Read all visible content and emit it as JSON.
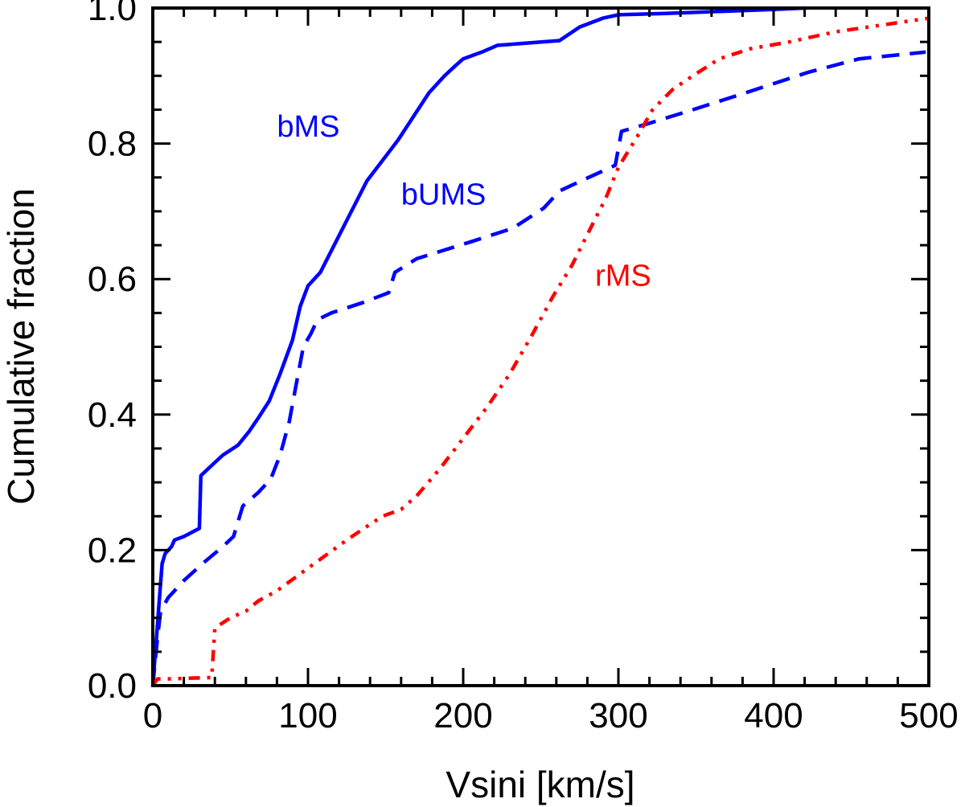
{
  "chart_data": {
    "type": "line",
    "xlabel": "Vsini [km/s]",
    "ylabel": "Cumulative fraction",
    "xlim": [
      0,
      500
    ],
    "ylim": [
      0,
      1.0
    ],
    "xticks": [
      "0",
      "100",
      "200",
      "300",
      "400",
      "500"
    ],
    "yticks": [
      "0.0",
      "0.2",
      "0.4",
      "0.6",
      "0.8",
      "1.0"
    ],
    "xtick_values": [
      0,
      100,
      200,
      300,
      400,
      500
    ],
    "ytick_values": [
      0,
      0.2,
      0.4,
      0.6,
      0.8,
      1.0
    ],
    "grid": false,
    "series": [
      {
        "name": "bMS",
        "color": "#0000ff",
        "style": "solid",
        "label_at": [
          80,
          0.81
        ],
        "points": [
          [
            0,
            0.0
          ],
          [
            2,
            0.06
          ],
          [
            4,
            0.12
          ],
          [
            6,
            0.18
          ],
          [
            8,
            0.195
          ],
          [
            12,
            0.205
          ],
          [
            14,
            0.215
          ],
          [
            20,
            0.22
          ],
          [
            30,
            0.232
          ],
          [
            31,
            0.31
          ],
          [
            38,
            0.325
          ],
          [
            45,
            0.34
          ],
          [
            55,
            0.355
          ],
          [
            62,
            0.375
          ],
          [
            68,
            0.395
          ],
          [
            75,
            0.42
          ],
          [
            82,
            0.46
          ],
          [
            90,
            0.51
          ],
          [
            95,
            0.56
          ],
          [
            100,
            0.59
          ],
          [
            108,
            0.61
          ],
          [
            118,
            0.655
          ],
          [
            128,
            0.7
          ],
          [
            138,
            0.745
          ],
          [
            148,
            0.775
          ],
          [
            158,
            0.805
          ],
          [
            168,
            0.84
          ],
          [
            178,
            0.875
          ],
          [
            188,
            0.9
          ],
          [
            195,
            0.915
          ],
          [
            200,
            0.925
          ],
          [
            212,
            0.935
          ],
          [
            222,
            0.945
          ],
          [
            240,
            0.948
          ],
          [
            262,
            0.952
          ],
          [
            275,
            0.972
          ],
          [
            290,
            0.985
          ],
          [
            300,
            0.99
          ],
          [
            330,
            0.992
          ],
          [
            365,
            0.995
          ],
          [
            400,
            0.998
          ],
          [
            420,
            1.0
          ]
        ]
      },
      {
        "name": "bUMS",
        "color": "#0000ff",
        "style": "dashed",
        "label_at": [
          160,
          0.71
        ],
        "points": [
          [
            0,
            0.0
          ],
          [
            3,
            0.07
          ],
          [
            5,
            0.11
          ],
          [
            10,
            0.13
          ],
          [
            20,
            0.155
          ],
          [
            32,
            0.18
          ],
          [
            45,
            0.205
          ],
          [
            52,
            0.22
          ],
          [
            58,
            0.265
          ],
          [
            68,
            0.285
          ],
          [
            76,
            0.305
          ],
          [
            82,
            0.34
          ],
          [
            88,
            0.39
          ],
          [
            92,
            0.44
          ],
          [
            97,
            0.5
          ],
          [
            102,
            0.52
          ],
          [
            106,
            0.54
          ],
          [
            115,
            0.55
          ],
          [
            135,
            0.565
          ],
          [
            152,
            0.58
          ],
          [
            156,
            0.61
          ],
          [
            170,
            0.63
          ],
          [
            205,
            0.655
          ],
          [
            232,
            0.675
          ],
          [
            252,
            0.705
          ],
          [
            262,
            0.73
          ],
          [
            276,
            0.745
          ],
          [
            298,
            0.768
          ],
          [
            302,
            0.818
          ],
          [
            320,
            0.83
          ],
          [
            348,
            0.85
          ],
          [
            382,
            0.875
          ],
          [
            422,
            0.905
          ],
          [
            455,
            0.925
          ],
          [
            498,
            0.935
          ]
        ]
      },
      {
        "name": "rMS",
        "color": "#ff0000",
        "style": "dashdotdot",
        "label_at": [
          285,
          0.59
        ],
        "points": [
          [
            0,
            0.0
          ],
          [
            3,
            0.01
          ],
          [
            10,
            0.01
          ],
          [
            38,
            0.012
          ],
          [
            40,
            0.085
          ],
          [
            50,
            0.1
          ],
          [
            60,
            0.11
          ],
          [
            68,
            0.125
          ],
          [
            80,
            0.14
          ],
          [
            95,
            0.165
          ],
          [
            110,
            0.19
          ],
          [
            125,
            0.215
          ],
          [
            138,
            0.235
          ],
          [
            148,
            0.25
          ],
          [
            160,
            0.26
          ],
          [
            170,
            0.28
          ],
          [
            185,
            0.32
          ],
          [
            200,
            0.365
          ],
          [
            215,
            0.41
          ],
          [
            230,
            0.46
          ],
          [
            245,
            0.52
          ],
          [
            258,
            0.575
          ],
          [
            270,
            0.62
          ],
          [
            282,
            0.675
          ],
          [
            292,
            0.72
          ],
          [
            300,
            0.765
          ],
          [
            312,
            0.81
          ],
          [
            322,
            0.85
          ],
          [
            335,
            0.88
          ],
          [
            348,
            0.9
          ],
          [
            365,
            0.925
          ],
          [
            385,
            0.94
          ],
          [
            410,
            0.95
          ],
          [
            440,
            0.965
          ],
          [
            470,
            0.975
          ],
          [
            500,
            0.985
          ]
        ]
      }
    ]
  }
}
